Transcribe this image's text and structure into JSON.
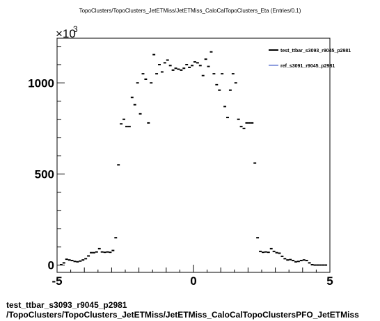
{
  "chart_data": {
    "type": "scatter",
    "title": "TopoClusters/TopoClusters_JetETMiss/JetETMiss_CaloCalTopoClusters_Eta (Entries/0.1)",
    "multiplier_base": "×10",
    "multiplier_exponent": "3",
    "xlim": [
      -5,
      5
    ],
    "ylim": [
      -40,
      1245
    ],
    "xticks": [
      "-5",
      "0",
      "5"
    ],
    "yticks": [
      "0",
      "500",
      "1000"
    ],
    "ytick_values": [
      0,
      500,
      1000
    ],
    "xtick_values": [
      -5,
      0,
      5
    ],
    "bin_width": 0.1,
    "series": [
      {
        "name": "test_ttbar_s3093_r9045_p2981",
        "color": "#000000",
        "x": [
          -4.85,
          -4.75,
          -4.65,
          -4.55,
          -4.45,
          -4.35,
          -4.25,
          -4.15,
          -4.05,
          -3.95,
          -3.85,
          -3.75,
          -3.65,
          -3.55,
          -3.45,
          -3.35,
          -3.25,
          -3.15,
          -3.05,
          -2.95,
          -2.85,
          -2.75,
          -2.65,
          -2.55,
          -2.45,
          -2.35,
          -2.25,
          -2.15,
          -2.05,
          -1.95,
          -1.85,
          -1.75,
          -1.65,
          -1.55,
          -1.45,
          -1.35,
          -1.25,
          -1.15,
          -1.05,
          -0.95,
          -0.85,
          -0.75,
          -0.65,
          -0.55,
          -0.45,
          -0.35,
          -0.25,
          -0.15,
          -0.05,
          0.05,
          0.15,
          0.25,
          0.35,
          0.45,
          0.55,
          0.65,
          0.75,
          0.85,
          0.95,
          1.05,
          1.15,
          1.25,
          1.35,
          1.45,
          1.55,
          1.65,
          1.75,
          1.85,
          1.95,
          2.05,
          2.15,
          2.25,
          2.35,
          2.45,
          2.55,
          2.65,
          2.75,
          2.85,
          2.95,
          3.05,
          3.15,
          3.25,
          3.35,
          3.45,
          3.55,
          3.65,
          3.75,
          3.85,
          3.95,
          4.05,
          4.15,
          4.25,
          4.35,
          4.45,
          4.55,
          4.65,
          4.75,
          4.85
        ],
        "y": [
          2,
          12,
          32,
          28,
          25,
          20,
          18,
          22,
          28,
          35,
          50,
          68,
          68,
          72,
          90,
          72,
          70,
          72,
          70,
          80,
          150,
          550,
          775,
          800,
          760,
          760,
          920,
          880,
          1000,
          830,
          1050,
          1020,
          780,
          1000,
          1155,
          1050,
          1100,
          1060,
          1110,
          1125,
          1095,
          1070,
          1080,
          1075,
          1070,
          1080,
          1100,
          1085,
          1095,
          1115,
          1110,
          1095,
          1040,
          1130,
          1090,
          1170,
          1050,
          990,
          960,
          1050,
          870,
          810,
          960,
          1050,
          1000,
          800,
          760,
          750,
          780,
          780,
          780,
          560,
          150,
          75,
          70,
          72,
          70,
          90,
          75,
          68,
          65,
          48,
          35,
          28,
          30,
          25,
          18,
          20,
          25,
          28,
          25,
          12,
          2,
          0,
          0,
          0,
          0,
          0
        ]
      },
      {
        "name": "ref_s3091_r9045_p2981",
        "color": "#1f3fbf",
        "x": [],
        "y": []
      }
    ]
  },
  "footer": {
    "line1": "test_ttbar_s3093_r9045_p2981",
    "line2": "/TopoClusters/TopoClusters_JetETMiss/JetETMiss_CaloCalTopoClustersPFO_JetETMiss"
  }
}
